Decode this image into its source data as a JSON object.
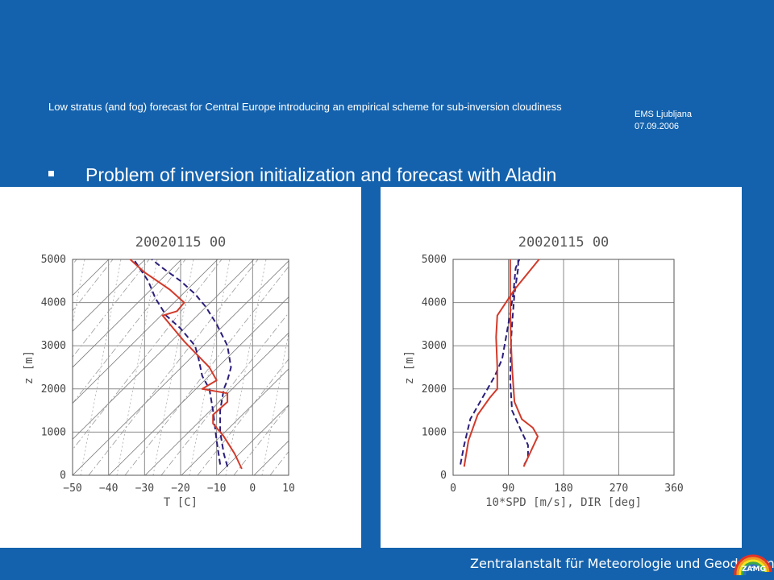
{
  "header": {
    "title": "Low stratus (and fog) forecast for Central Europe introducing an empirical scheme for sub-inversion cloudiness",
    "venue": "EMS Ljubljana",
    "date": "07.09.2006"
  },
  "bullet": {
    "text": "Problem of inversion initialization and forecast with Aladin"
  },
  "footer": {
    "institute": "Zentralanstalt für Meteorologie und Geodynamik",
    "logo_text": "ZAMG"
  },
  "colors": {
    "background": "#1462ad",
    "forecast_series": "#d23a2a",
    "observed_series": "#2a1e7a"
  },
  "chart_data": [
    {
      "type": "line",
      "title": "20020115 00",
      "xlabel": "T [C]",
      "ylabel": "z [m]",
      "xlim": [
        -50,
        10
      ],
      "ylim": [
        0,
        5000
      ],
      "xticks": [
        "−50",
        "−40",
        "−30",
        "−20",
        "−10",
        "0",
        "10"
      ],
      "yticks": [
        "0",
        "1000",
        "2000",
        "3000",
        "4000",
        "5000"
      ],
      "grid": true,
      "series": [
        {
          "style": "dashed",
          "color": "#2a1e7a",
          "x": [
            -7,
            -8,
            -9,
            -9,
            -8,
            -7,
            -6,
            -7,
            -10,
            -13,
            -16,
            -20,
            -25,
            -28
          ],
          "y": [
            200,
            500,
            1000,
            1500,
            2000,
            2200,
            2500,
            3000,
            3500,
            3900,
            4200,
            4500,
            4800,
            5000
          ]
        },
        {
          "style": "dashed",
          "color": "#2a1e7a",
          "x": [
            -9,
            -10,
            -11,
            -12,
            -14,
            -15,
            -16,
            -20,
            -24,
            -27,
            -29,
            -33
          ],
          "y": [
            250,
            800,
            1500,
            2000,
            2300,
            2700,
            3000,
            3400,
            3700,
            4100,
            4500,
            5000
          ]
        },
        {
          "style": "solid",
          "color": "#d23a2a",
          "x": [
            -3,
            -5,
            -8,
            -9,
            -11,
            -11,
            -7,
            -7,
            -14,
            -10,
            -12,
            -19,
            -23,
            -25,
            -21,
            -19,
            -23,
            -30,
            -34
          ],
          "y": [
            150,
            500,
            900,
            1000,
            1200,
            1400,
            1700,
            1900,
            2000,
            2200,
            2500,
            3100,
            3500,
            3700,
            3800,
            4000,
            4300,
            4700,
            5000
          ]
        }
      ]
    },
    {
      "type": "line",
      "title": "20020115 00",
      "xlabel": "10*SPD [m/s], DIR [deg]",
      "ylabel": "z [m]",
      "xlim": [
        0,
        360
      ],
      "ylim": [
        0,
        5000
      ],
      "xticks": [
        "0",
        "90",
        "180",
        "270",
        "360"
      ],
      "yticks": [
        "0",
        "1000",
        "2000",
        "3000",
        "4000",
        "5000"
      ],
      "grid": true,
      "series": [
        {
          "style": "dashed",
          "color": "#2a1e7a",
          "x": [
            12,
            18,
            28,
            48,
            68,
            80,
            90,
            98,
            102,
            108
          ],
          "y": [
            250,
            700,
            1300,
            1800,
            2300,
            2700,
            3500,
            4200,
            4800,
            5000
          ]
        },
        {
          "style": "dashed",
          "color": "#2a1e7a",
          "x": [
            116,
            122,
            122,
            112,
            96,
            93,
            94,
            96,
            100,
            106,
            106
          ],
          "y": [
            250,
            400,
            700,
            1000,
            1500,
            2200,
            3000,
            3500,
            4200,
            4800,
            5000
          ]
        },
        {
          "style": "solid",
          "color": "#d23a2a",
          "x": [
            18,
            25,
            40,
            60,
            72,
            72,
            70,
            72,
            100,
            140
          ],
          "y": [
            200,
            800,
            1400,
            1800,
            2000,
            2500,
            3200,
            3700,
            4300,
            5000
          ]
        },
        {
          "style": "solid",
          "color": "#d23a2a",
          "x": [
            115,
            138,
            130,
            112,
            100,
            96,
            94,
            93,
            93
          ],
          "y": [
            200,
            900,
            1100,
            1300,
            1700,
            2500,
            3200,
            4000,
            5000
          ]
        }
      ]
    }
  ]
}
